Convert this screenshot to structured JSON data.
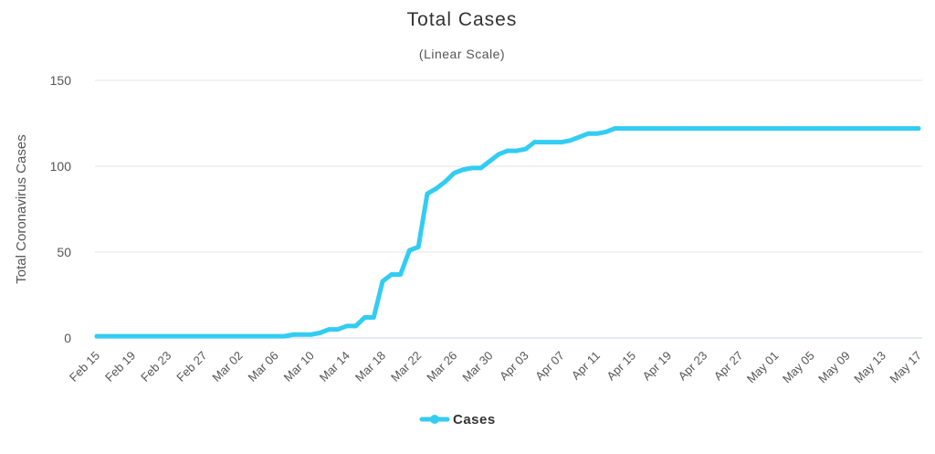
{
  "chart_data": {
    "type": "line",
    "title": "Total Cases",
    "subtitle": "(Linear Scale)",
    "ylabel": "Total Coronavirus Cases",
    "xlabel": "",
    "ylim": [
      0,
      150
    ],
    "yticks": [
      "0",
      "50",
      "100",
      "150"
    ],
    "ytick_values": [
      0,
      50,
      100,
      150
    ],
    "grid": true,
    "legend_position": "bottom-center",
    "x_tick_labels": [
      "Feb 15",
      "Feb 19",
      "Feb 23",
      "Feb 27",
      "Mar 02",
      "Mar 06",
      "Mar 10",
      "Mar 14",
      "Mar 18",
      "Mar 22",
      "Mar 26",
      "Mar 30",
      "Apr 03",
      "Apr 07",
      "Apr 11",
      "Apr 15",
      "Apr 19",
      "Apr 23",
      "Apr 27",
      "May 01",
      "May 05",
      "May 09",
      "May 13",
      "May 17"
    ],
    "series": [
      {
        "name": "Cases",
        "color": "#33ccf2",
        "x": [
          "Feb 15",
          "Feb 16",
          "Feb 17",
          "Feb 18",
          "Feb 19",
          "Feb 20",
          "Feb 21",
          "Feb 22",
          "Feb 23",
          "Feb 24",
          "Feb 25",
          "Feb 26",
          "Feb 27",
          "Feb 28",
          "Feb 29",
          "Mar 01",
          "Mar 02",
          "Mar 03",
          "Mar 04",
          "Mar 05",
          "Mar 06",
          "Mar 07",
          "Mar 08",
          "Mar 09",
          "Mar 10",
          "Mar 11",
          "Mar 12",
          "Mar 13",
          "Mar 14",
          "Mar 15",
          "Mar 16",
          "Mar 17",
          "Mar 18",
          "Mar 19",
          "Mar 20",
          "Mar 21",
          "Mar 22",
          "Mar 23",
          "Mar 24",
          "Mar 25",
          "Mar 26",
          "Mar 27",
          "Mar 28",
          "Mar 29",
          "Mar 30",
          "Mar 31",
          "Apr 01",
          "Apr 02",
          "Apr 03",
          "Apr 04",
          "Apr 05",
          "Apr 06",
          "Apr 07",
          "Apr 08",
          "Apr 09",
          "Apr 10",
          "Apr 11",
          "Apr 12",
          "Apr 13",
          "Apr 14",
          "Apr 15",
          "Apr 16",
          "Apr 17",
          "Apr 18",
          "Apr 19",
          "Apr 20",
          "Apr 21",
          "Apr 22",
          "Apr 23",
          "Apr 24",
          "Apr 25",
          "Apr 26",
          "Apr 27",
          "Apr 28",
          "Apr 29",
          "Apr 30",
          "May 01",
          "May 02",
          "May 03",
          "May 04",
          "May 05",
          "May 06",
          "May 07",
          "May 08",
          "May 09",
          "May 10",
          "May 11",
          "May 12",
          "May 13",
          "May 14",
          "May 15",
          "May 16",
          "May 17"
        ],
        "values": [
          1,
          1,
          1,
          1,
          1,
          1,
          1,
          1,
          1,
          1,
          1,
          1,
          1,
          1,
          1,
          1,
          1,
          1,
          1,
          1,
          1,
          1,
          2,
          2,
          2,
          3,
          5,
          5,
          7,
          7,
          12,
          12,
          33,
          37,
          37,
          51,
          53,
          84,
          87,
          91,
          96,
          98,
          99,
          99,
          103,
          107,
          109,
          109,
          110,
          114,
          114,
          114,
          114,
          115,
          117,
          119,
          119,
          120,
          122,
          122,
          122,
          122,
          122,
          122,
          122,
          122,
          122,
          122,
          122,
          122,
          122,
          122,
          122,
          122,
          122,
          122,
          122,
          122,
          122,
          122,
          122,
          122,
          122,
          122,
          122,
          122,
          122,
          122,
          122,
          122,
          122,
          122,
          122
        ]
      }
    ]
  }
}
